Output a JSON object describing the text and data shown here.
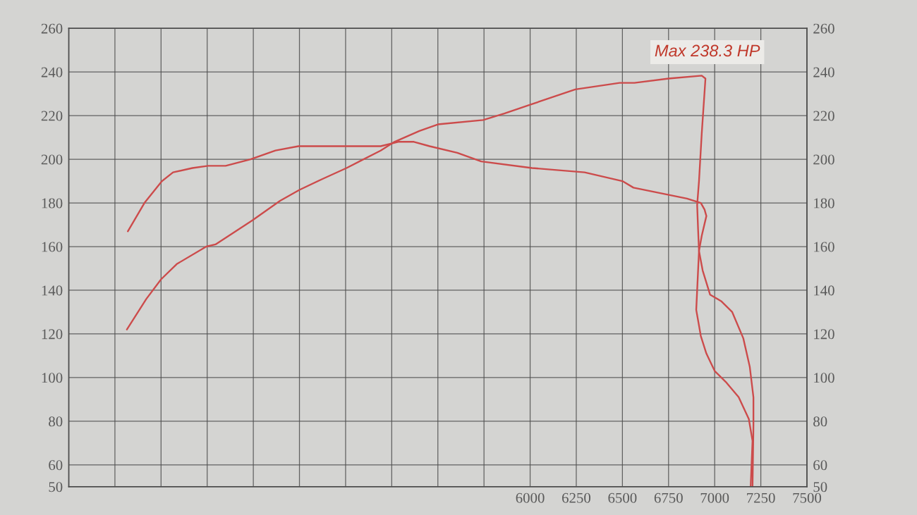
{
  "chart_data": {
    "type": "line",
    "annotations": [
      "Max 238.3 HP"
    ],
    "xlim": [
      3500,
      7500
    ],
    "xticks": [
      {
        "value": 3500,
        "label": null
      },
      {
        "value": 3750,
        "label": null
      },
      {
        "value": 4000,
        "label": null
      },
      {
        "value": 4250,
        "label": null
      },
      {
        "value": 4500,
        "label": null
      },
      {
        "value": 4750,
        "label": null
      },
      {
        "value": 5000,
        "label": null
      },
      {
        "value": 5250,
        "label": null
      },
      {
        "value": 5500,
        "label": null
      },
      {
        "value": 5750,
        "label": null
      },
      6000,
      6250,
      6500,
      6750,
      7000,
      7250,
      7500
    ],
    "ylim": [
      50,
      260
    ],
    "yticks": [
      50,
      60,
      80,
      100,
      120,
      140,
      160,
      180,
      200,
      220,
      240,
      260
    ],
    "y2lim": [
      50,
      260
    ],
    "y2ticks": [
      50,
      60,
      80,
      100,
      120,
      140,
      160,
      180,
      200,
      220,
      240,
      260
    ],
    "grid": true,
    "series": [
      {
        "color": "#cc4b4b",
        "x": [
          3820,
          3910,
          4005,
          4065,
          4170,
          4255,
          4350,
          4485,
          4620,
          4745,
          4900,
          5190,
          5285,
          5370,
          5455,
          5605,
          5735,
          6010,
          6295,
          6500,
          6560,
          6850,
          6925,
          6945,
          6955,
          6930,
          6915,
          6935,
          6975,
          7035,
          7095,
          7155,
          7190,
          7210,
          7210,
          7205
        ],
        "values": [
          167,
          180,
          190,
          194,
          196,
          197,
          197,
          200,
          204,
          206,
          206,
          206,
          208,
          208,
          206,
          203,
          199,
          196,
          194,
          190,
          187,
          182,
          180,
          177,
          174,
          165,
          158,
          149,
          138,
          135,
          130,
          118,
          105,
          91,
          78,
          50
        ]
      },
      {
        "color": "#cc4b4b",
        "x": [
          3815,
          3920,
          4000,
          4085,
          4245,
          4295,
          4495,
          4645,
          4750,
          4875,
          5005,
          5190,
          5265,
          5400,
          5500,
          5745,
          5860,
          6000,
          6245,
          6485,
          6565,
          6750,
          6930,
          6950,
          6930,
          6915,
          6905,
          6910,
          6915,
          6900,
          6925,
          6955,
          7000,
          7060,
          7130,
          7185,
          7205,
          7195
        ],
        "values": [
          122,
          136,
          145,
          152,
          160,
          161,
          172,
          181,
          186,
          191,
          196,
          204,
          208,
          213,
          216,
          218,
          221,
          225,
          232,
          235,
          235,
          237,
          238.3,
          237,
          212,
          190,
          179,
          168,
          158,
          131,
          119,
          111,
          103,
          98,
          91,
          81,
          71,
          50
        ]
      }
    ]
  }
}
